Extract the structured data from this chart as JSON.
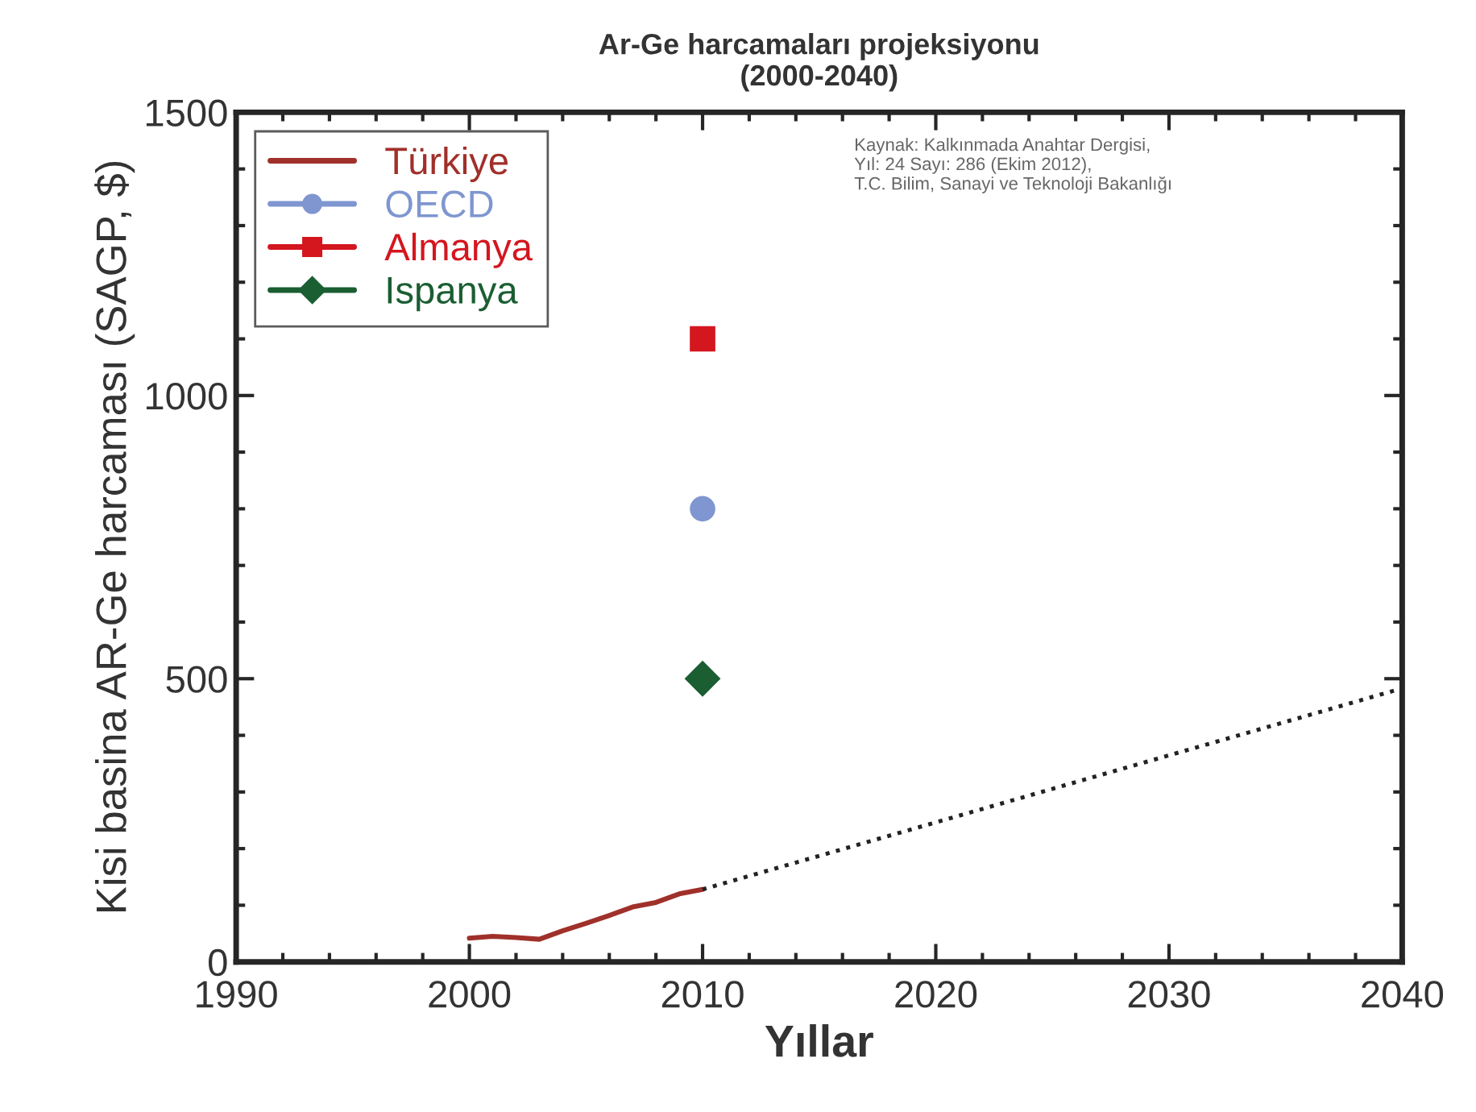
{
  "chart_data": {
    "type": "line",
    "title": "Ar-Ge harcamaları projeksiyonu\n(2000-2040)",
    "xlabel": "Yıllar",
    "ylabel": "Kisi basina AR-Ge harcaması (SAGP, $)",
    "annotations": [
      "Kaynak: Kalkınmada Anahtar Dergisi,\nYıl: 24 Sayı: 286 (Ekim 2012),\nT.C. Bilim, Sanayi ve Teknoloji Bakanlığı"
    ],
    "series": [
      {
        "name": "Türkiye",
        "color": "#a0302a",
        "marker": "none",
        "line_style": "solid",
        "x": [
          2000,
          2001,
          2002,
          2003,
          2004,
          2005,
          2006,
          2007,
          2008,
          2009,
          2010
        ],
        "values": [
          42,
          45,
          43,
          40,
          55,
          68,
          82,
          97,
          105,
          120,
          128
        ]
      },
      {
        "color": "#222222",
        "marker": "none",
        "line_style": "dotted",
        "x": [
          2010,
          2040
        ],
        "values": [
          128,
          483
        ]
      },
      {
        "name": "OECD",
        "type": "scatter",
        "color": "#7f96d0",
        "marker": "circle",
        "x": [
          2010
        ],
        "values": [
          800
        ]
      },
      {
        "name": "Almanya",
        "type": "scatter",
        "color": "#d4161f",
        "marker": "square",
        "x": [
          2010
        ],
        "values": [
          1100
        ]
      },
      {
        "name": "Ispanya",
        "type": "scatter",
        "color": "#1a5e32",
        "marker": "diamond",
        "x": [
          2010
        ],
        "values": [
          500
        ]
      }
    ],
    "xlim": [
      1990,
      2040
    ],
    "xticks": [
      1990,
      2000,
      2010,
      2020,
      2030,
      2040
    ],
    "ylim": [
      0,
      1500
    ],
    "yticks": [
      0,
      500,
      1000,
      1500
    ],
    "grid": false,
    "legend": "top left"
  }
}
